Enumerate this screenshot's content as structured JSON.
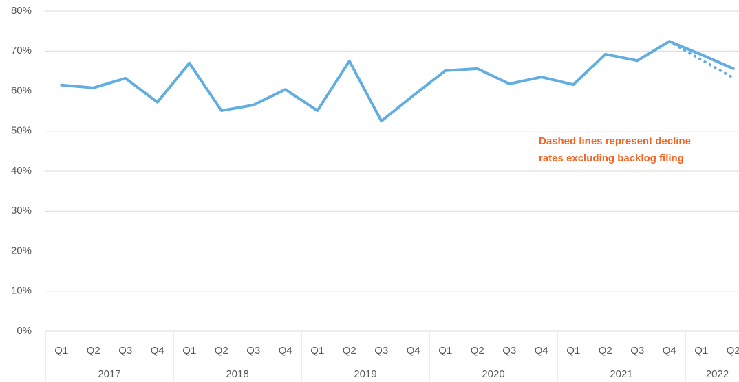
{
  "chart_data": {
    "type": "line",
    "categories": [
      "Q1",
      "Q2",
      "Q3",
      "Q4",
      "Q1",
      "Q2",
      "Q3",
      "Q4",
      "Q1",
      "Q2",
      "Q3",
      "Q4",
      "Q1",
      "Q2",
      "Q3",
      "Q4",
      "Q1",
      "Q2",
      "Q3",
      "Q4",
      "Q1",
      "Q2"
    ],
    "groups": [
      {
        "label": "2017",
        "size": 4
      },
      {
        "label": "2018",
        "size": 4
      },
      {
        "label": "2019",
        "size": 4
      },
      {
        "label": "2020",
        "size": 4
      },
      {
        "label": "2021",
        "size": 4
      },
      {
        "label": "2022",
        "size": 2
      }
    ],
    "series": [
      {
        "color": "#62aee0",
        "style": "solid",
        "values": [
          61.5,
          60.8,
          63.2,
          57.2,
          67.0,
          55.1,
          56.5,
          60.4,
          55.1,
          67.5,
          52.5,
          58.9,
          65.1,
          65.6,
          61.8,
          63.5,
          61.6,
          69.2,
          67.6,
          72.4,
          69.1,
          65.6
        ]
      },
      {
        "color": "#62aee0",
        "style": "dotted",
        "values": [
          null,
          null,
          null,
          null,
          null,
          null,
          null,
          null,
          null,
          null,
          null,
          null,
          null,
          null,
          null,
          null,
          null,
          null,
          null,
          72.4,
          67.8,
          63.3
        ]
      }
    ],
    "ylim": [
      0,
      80
    ],
    "yticks": [
      {
        "value": 0,
        "label": "0%"
      },
      {
        "value": 10,
        "label": "10%"
      },
      {
        "value": 20,
        "label": "20%"
      },
      {
        "value": 30,
        "label": "30%"
      },
      {
        "value": 40,
        "label": "40%"
      },
      {
        "value": 50,
        "label": "50%"
      },
      {
        "value": 60,
        "label": "60%"
      },
      {
        "value": 70,
        "label": "70%"
      },
      {
        "value": 80,
        "label": "80%"
      }
    ],
    "grid": true,
    "annotation": [
      "Dashed lines represent decline",
      "rates excluding backlog filing"
    ]
  }
}
